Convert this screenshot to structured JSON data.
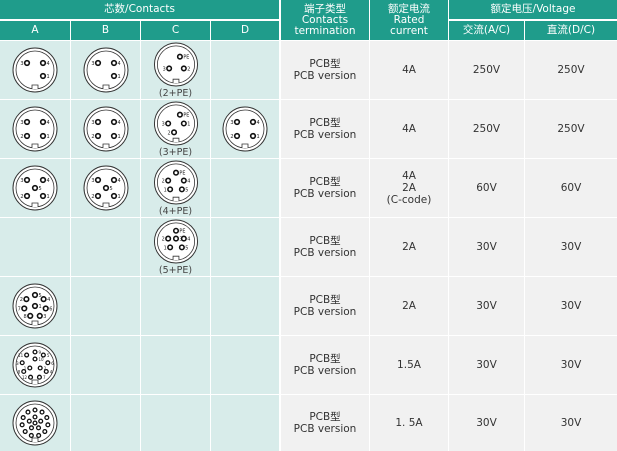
{
  "colors": {
    "header": "#1f9c8b",
    "contacts_bg": "#d8ecea",
    "spec_bg": "#f1f1f1"
  },
  "header": {
    "contacts": "芯数/Contacts",
    "columns": [
      "A",
      "B",
      "C",
      "D"
    ],
    "termination": [
      "端子类型",
      "Contacts",
      "termination"
    ],
    "current": [
      "额定电流",
      "Rated",
      "current"
    ],
    "voltage": "额定电压/Voltage",
    "ac": "交流(A/C)",
    "dc": "直流(D/C)"
  },
  "rows": [
    {
      "connectors": [
        {
          "col": 0,
          "pins": [
            "3",
            "4",
            "1"
          ]
        },
        {
          "col": 1,
          "pins": [
            "3",
            "4",
            "1"
          ]
        },
        {
          "col": 2,
          "pins": [
            "PE",
            "3",
            "2"
          ],
          "caption": "(2+PE)"
        }
      ],
      "termination": [
        "PCB型",
        "PCB version"
      ],
      "current": [
        "4A"
      ],
      "ac": "250V",
      "dc": "250V"
    },
    {
      "connectors": [
        {
          "col": 0,
          "pins": [
            "3",
            "4",
            "2",
            "1"
          ]
        },
        {
          "col": 1,
          "pins": [
            "3",
            "4",
            "2",
            "1"
          ]
        },
        {
          "col": 2,
          "pins": [
            "PE",
            "3",
            "1",
            "2"
          ],
          "caption": "(3+PE)"
        },
        {
          "col": 3,
          "pins": [
            "3",
            "4",
            "2",
            "1"
          ]
        }
      ],
      "termination": [
        "PCB型",
        "PCB version"
      ],
      "current": [
        "4A"
      ],
      "ac": "250V",
      "dc": "250V"
    },
    {
      "connectors": [
        {
          "col": 0,
          "pins": [
            "3",
            "4",
            "5",
            "2",
            "1"
          ]
        },
        {
          "col": 1,
          "pins": [
            "3",
            "4",
            "5",
            "2",
            "1"
          ]
        },
        {
          "col": 2,
          "pins": [
            "PE",
            "2",
            "4",
            "1",
            "5"
          ],
          "caption": "(4+PE)"
        }
      ],
      "termination": [
        "PCB型",
        "PCB version"
      ],
      "current": [
        "4A",
        "2A",
        "(C-code)"
      ],
      "ac": "60V",
      "dc": "60V"
    },
    {
      "connectors": [
        {
          "col": 2,
          "pins": [
            "PE",
            "2",
            "3",
            "4",
            "1",
            "5"
          ],
          "caption": "(5+PE)"
        }
      ],
      "termination": [
        "PCB型",
        "PCB version"
      ],
      "current": [
        "2A"
      ],
      "ac": "30V",
      "dc": "30V"
    },
    {
      "connectors": [
        {
          "col": 0,
          "pins": [
            "5",
            "4",
            "6",
            "3",
            "8",
            "7",
            "2",
            "1"
          ]
        }
      ],
      "termination": [
        "PCB型",
        "PCB version"
      ],
      "current": [
        "2A"
      ],
      "ac": "30V",
      "dc": "30V"
    },
    {
      "connectors": [
        {
          "col": 0,
          "pins": [
            "9",
            "5",
            "6",
            "4",
            "7",
            "12",
            "8",
            "3",
            "11",
            "10",
            "2",
            "1"
          ]
        }
      ],
      "termination": [
        "PCB型",
        "PCB version"
      ],
      "current": [
        "1.5A"
      ],
      "ac": "30V",
      "dc": "30V"
    },
    {
      "connectors": [
        {
          "col": 0,
          "pins": [
            "",
            "",
            "",
            "",
            "",
            "",
            "",
            "",
            "",
            "",
            "",
            "",
            "",
            "",
            "",
            "",
            ""
          ]
        }
      ],
      "termination": [
        "PCB型",
        "PCB version"
      ],
      "current": [
        "1. 5A"
      ],
      "ac": "30V",
      "dc": "30V"
    }
  ]
}
